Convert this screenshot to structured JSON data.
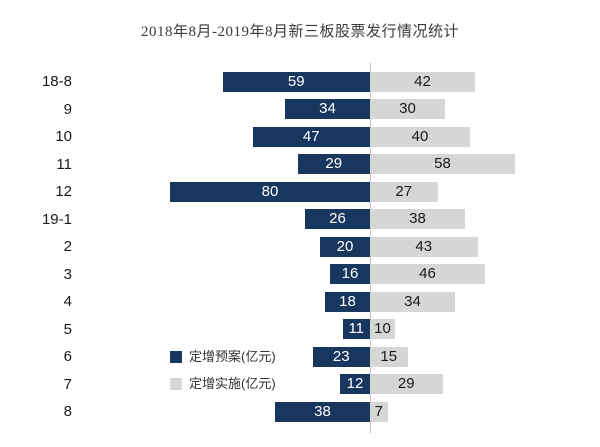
{
  "title": "2018年8月-2019年8月新三板股票发行情况统计",
  "legend": {
    "plan_label": "定增预案(亿元)",
    "impl_label": "定增实施(亿元)"
  },
  "colors": {
    "plan": "#17375e",
    "implement": "#d6d6d6",
    "axis": "#bfbfbf"
  },
  "chart_data": {
    "type": "bar",
    "variant": "tornado-horizontal",
    "title": "2018年8月-2019年8月新三板股票发行情况统计",
    "unit": "亿元",
    "categories": [
      "18-8",
      "9",
      "10",
      "11",
      "12",
      "19-1",
      "2",
      "3",
      "4",
      "5",
      "6",
      "7",
      "8"
    ],
    "series": [
      {
        "name": "定增预案(亿元)",
        "side": "left",
        "color": "#17375e",
        "values": [
          59,
          34,
          47,
          29,
          80,
          26,
          20,
          16,
          18,
          11,
          23,
          12,
          38
        ]
      },
      {
        "name": "定增实施(亿元)",
        "side": "right",
        "color": "#d6d6d6",
        "values": [
          42,
          30,
          40,
          58,
          27,
          38,
          43,
          46,
          34,
          10,
          15,
          29,
          7
        ]
      }
    ],
    "value_labels": "inside-bars",
    "axis": "center-vertical-baseline",
    "legend_position": "inside-left-lower"
  }
}
